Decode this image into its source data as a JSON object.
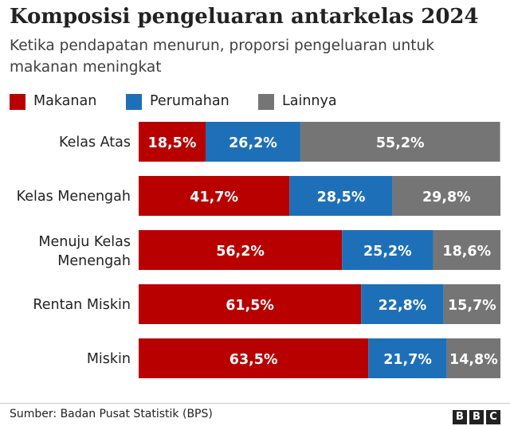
{
  "header": {
    "title": "Komposisi pengeluaran antarkelas 2024",
    "subtitle": "Ketika pendapatan menurun, proporsi pengeluaran untuk makanan meningkat"
  },
  "chart_data": {
    "type": "bar",
    "orientation": "horizontal",
    "stacked": true,
    "categories": [
      "Kelas Atas",
      "Kelas Menengah",
      "Menuju Kelas Menengah",
      "Rentan Miskin",
      "Miskin"
    ],
    "series": [
      {
        "name": "Makanan",
        "values": [
          18.5,
          41.7,
          56.2,
          61.5,
          63.5
        ],
        "labels": [
          "18,5%",
          "41,7%",
          "56,2%",
          "61,5%",
          "63,5%"
        ],
        "color": "#b80000"
      },
      {
        "name": "Perumahan",
        "values": [
          26.2,
          28.5,
          25.2,
          22.8,
          21.7
        ],
        "labels": [
          "26,2%",
          "28,5%",
          "25,2%",
          "22,8%",
          "21,7%"
        ],
        "color": "#1d70b8"
      },
      {
        "name": "Lainnya",
        "values": [
          55.2,
          29.8,
          18.6,
          15.7,
          14.8
        ],
        "labels": [
          "55,2%",
          "29,8%",
          "18,6%",
          "15,7%",
          "14,8%"
        ],
        "color": "#757575"
      }
    ],
    "xlim": [
      0,
      100
    ],
    "grid": false,
    "legend_position": "top-left"
  },
  "footer": {
    "source": "Sumber: Badan Pusat Statistik (BPS)",
    "logo": [
      "B",
      "B",
      "C"
    ]
  }
}
